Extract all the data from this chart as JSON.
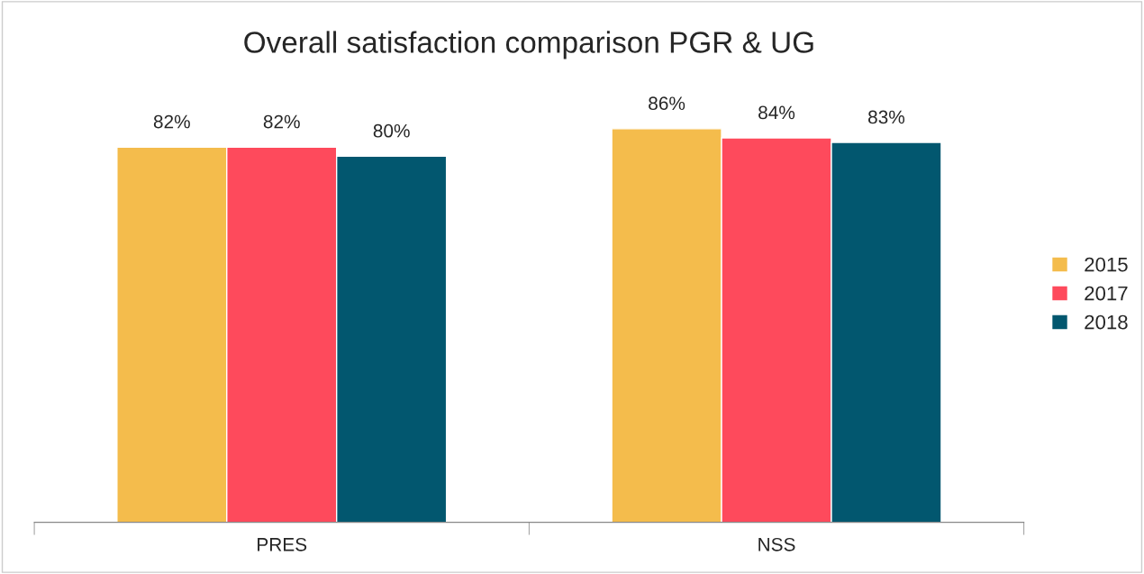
{
  "chart_data": {
    "type": "bar",
    "title": "Overall satisfaction comparison PGR & UG",
    "categories": [
      "PRES",
      "NSS"
    ],
    "series": [
      {
        "name": "2015",
        "color": "#f4bc4c",
        "values": [
          82,
          86
        ],
        "value_labels": [
          "82%",
          "86%"
        ]
      },
      {
        "name": "2017",
        "color": "#fe4a5c",
        "values": [
          82,
          84
        ],
        "value_labels": [
          "82%",
          "84%"
        ]
      },
      {
        "name": "2018",
        "color": "#02576f",
        "values": [
          80,
          83
        ],
        "value_labels": [
          "80%",
          "83%"
        ]
      }
    ],
    "tick_labels": "x",
    "grid": false,
    "legend": "right"
  }
}
